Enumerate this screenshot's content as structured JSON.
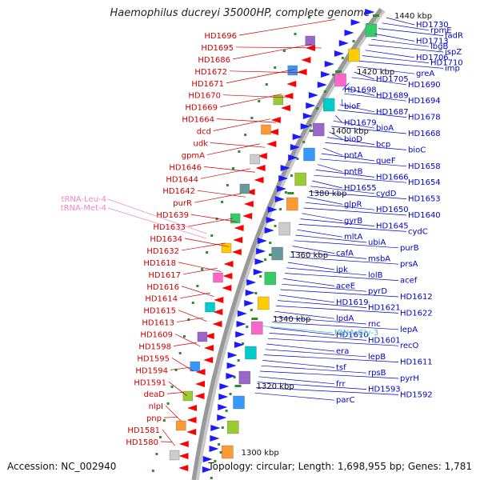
{
  "title": "Haemophilus ducreyi 35000HP, complete genome",
  "footer": {
    "accession_label": "Accession:",
    "accession": "NC_002940",
    "topology_label": "Topology:",
    "topology": "circular",
    "length_label": "Length:",
    "length": "1,698,955 bp",
    "genes_label": "Genes:",
    "genes": "1,781"
  },
  "colors": {
    "backbone": "#999999",
    "forward_strand_arrows": "#1a1aff",
    "reverse_strand_arrows": "#ff0000",
    "left_labels": "#cc0000",
    "right_labels": "#0000cc",
    "trna_left": "#ee88bb",
    "trna_right": "#44bbcc",
    "ticks": "#2e8b2e"
  },
  "scale_ticks": [
    "1300 kbp",
    "1320 kbp",
    "1340 kbp",
    "1360 kbp",
    "1380 kbp",
    "1400 kbp",
    "1420 kbp",
    "1440 kbp"
  ],
  "left_labels": [
    "HD1696",
    "HD1695",
    "HD1686",
    "HD1672",
    "HD1671",
    "HD1670",
    "HD1669",
    "HD1664",
    "dcd",
    "udk",
    "gpmA",
    "HD1646",
    "HD1644",
    "HD1642",
    "purR",
    "HD1639",
    "HD1633",
    "HD1634",
    "HD1632",
    "HD1618",
    "HD1617",
    "HD1616",
    "HD1614",
    "HD1615",
    "HD1613",
    "HD1609",
    "HD1598",
    "HD1595",
    "HD1594",
    "HD1591",
    "deaD",
    "nlpI",
    "pnp",
    "HD1581",
    "HD1580"
  ],
  "left_trna_labels": [
    "tRNA-Leu-4",
    "tRNA-Met-4"
  ],
  "right_labels": [
    "HD1730",
    "rpmE",
    "fadR",
    "HD1713",
    "lbgB",
    "ispZ",
    "HD1706",
    "HD1710",
    "imp",
    "greA",
    "HD1705",
    "HD1690",
    "HD1698",
    "HD1689",
    "HD1694",
    "bioF",
    "HD1687",
    "HD1678",
    "HD1679",
    "bioA",
    "HD1668",
    "bioD",
    "bcp",
    "bioC",
    "pntA",
    "queF",
    "HD1658",
    "pntB",
    "HD1666",
    "HD1654",
    "HD1655",
    "cydD",
    "HD1653",
    "glpR",
    "HD1650",
    "HD1640",
    "gyrB",
    "HD1645",
    "cydC",
    "mltA",
    "ubiA",
    "purB",
    "cafA",
    "msbA",
    "prsA",
    "ipk",
    "lolB",
    "acef",
    "aceE",
    "pyrD",
    "HD1612",
    "HD1619",
    "HD1621",
    "HD1622",
    "lpdA",
    "rnc",
    "lepA",
    "HD1610",
    "HD1601",
    "recO",
    "era",
    "lepB",
    "HD1611",
    "tsf",
    "rpsB",
    "pyrH",
    "frr",
    "HD1593",
    "HD1592",
    "parC"
  ],
  "right_trna_labels": [
    "tRNA-Gly-3"
  ]
}
